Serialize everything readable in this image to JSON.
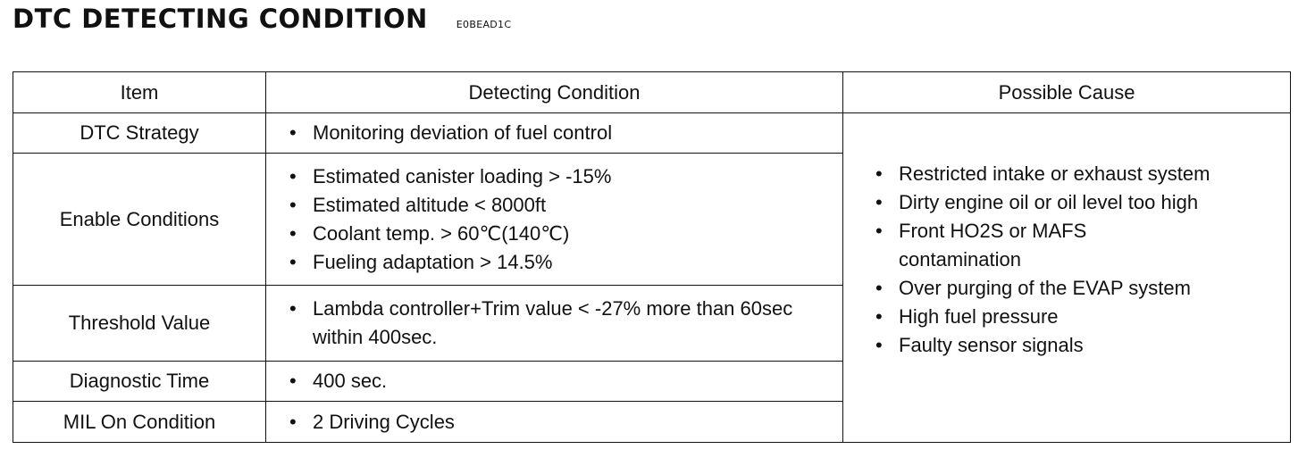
{
  "header": {
    "title": "DTC DETECTING CONDITION",
    "code": "E0BEAD1C"
  },
  "table": {
    "columns": [
      "Item",
      "Detecting Condition",
      "Possible Cause"
    ],
    "rows": [
      {
        "item": "DTC Strategy",
        "conditions": [
          "Monitoring deviation of fuel control"
        ]
      },
      {
        "item": "Enable Conditions",
        "conditions": [
          "Estimated canister loading > -15%",
          "Estimated altitude < 8000ft",
          "Coolant temp. > 60℃(140℃)",
          "Fueling adaptation > 14.5%"
        ]
      },
      {
        "item": "Threshold Value",
        "conditions": [
          "Lambda controller+Trim value < -27% more than 60sec within 400sec."
        ]
      },
      {
        "item": "Diagnostic Time",
        "conditions": [
          "400 sec."
        ]
      },
      {
        "item": "MIL On Condition",
        "conditions": [
          "2 Driving Cycles"
        ]
      }
    ],
    "possible_causes": [
      "Restricted intake or exhaust system",
      "Dirty engine oil or oil level too high",
      "Front HO2S or MAFS contamination",
      "Over purging of the EVAP system",
      "High fuel pressure",
      "Faulty sensor signals"
    ]
  }
}
